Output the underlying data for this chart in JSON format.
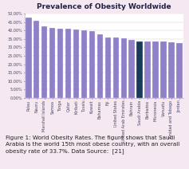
{
  "title": "Prevalence of Obesity Worldwide",
  "categories": [
    "Palau",
    "Nauru",
    "Marshall Islands",
    "Samoa",
    "Tonga",
    "Qatar",
    "Kiribati",
    "Tuvalu",
    "Kuwait",
    "Bahamas",
    "Fiji",
    "United States",
    "United Arab Emirates",
    "Bahrain",
    "Saudi Arabia",
    "Barbados",
    "Micronesia",
    "Vanuatu",
    "Trinidad and Tobago",
    "Jordan"
  ],
  "values": [
    47.6,
    45.9,
    42.3,
    41.5,
    41.1,
    41.1,
    40.6,
    40.3,
    39.4,
    37.9,
    35.9,
    35.7,
    35.4,
    34.6,
    33.7,
    33.6,
    33.6,
    33.5,
    33.0,
    32.5
  ],
  "bar_color_default": "#9080c8",
  "bar_color_highlight": "#1a3a5c",
  "highlight_index": 14,
  "ylim": [
    0,
    50
  ],
  "ytick_labels": [
    "0.00%",
    "5.00%",
    "10.00%",
    "15.00%",
    "20.00%",
    "25.00%",
    "30.00%",
    "35.00%",
    "40.00%",
    "45.00%",
    "50.00%"
  ],
  "ytick_values": [
    0,
    5,
    10,
    15,
    20,
    25,
    30,
    35,
    40,
    45,
    50
  ],
  "background_color": "#ffffff",
  "outer_background": "#f5e8f0",
  "title_fontsize": 6.5,
  "tick_fontsize": 3.5,
  "caption_bold": "Figure 1: ",
  "caption_normal": "World Obesity Rates. The figure shows that Saudi\nArabia is the world 15th most obese country, with an overall\nobesity rate of 33.7%. Data Source:  [21]",
  "caption_fontsize": 5.2
}
